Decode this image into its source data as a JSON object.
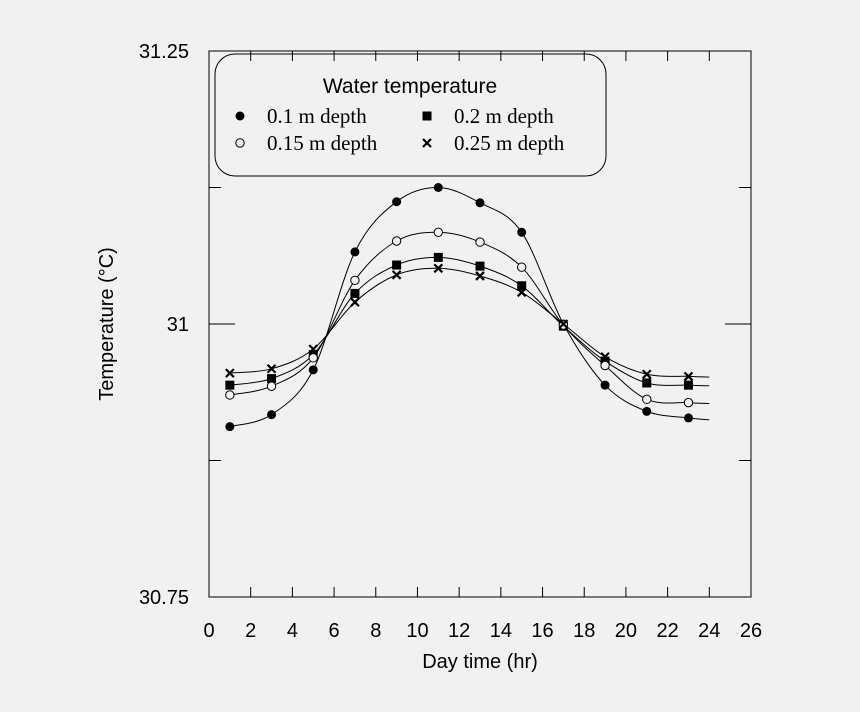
{
  "chart_data": {
    "type": "line",
    "xlabel": "Day time (hr)",
    "ylabel": "Temperature (°C)",
    "xlim": [
      0,
      26
    ],
    "ylim": [
      30.75,
      31.25
    ],
    "xticks": [
      "0",
      "2",
      "4",
      "6",
      "8",
      "10",
      "12",
      "14",
      "16",
      "18",
      "20",
      "22",
      "24",
      "26"
    ],
    "yticks": [
      "30.75",
      "31",
      "31.25"
    ],
    "legend": {
      "title": "Water temperature",
      "placement": "top-left"
    },
    "x": [
      1,
      3,
      5,
      7,
      9,
      11,
      13,
      15,
      17,
      19,
      21,
      23
    ],
    "series": [
      {
        "name": "0.1 m depth",
        "marker": "filled-circle",
        "values": [
          30.906,
          30.917,
          30.958,
          31.066,
          31.112,
          31.125,
          31.111,
          31.084,
          31.0,
          30.944,
          30.92,
          30.914
        ]
      },
      {
        "name": "0.2 m depth",
        "marker": "filled-square",
        "values": [
          30.944,
          30.95,
          30.972,
          31.028,
          31.054,
          31.061,
          31.053,
          31.035,
          30.998,
          30.966,
          30.946,
          30.944
        ]
      },
      {
        "name": "0.15 m depth",
        "marker": "open-circle",
        "values": [
          30.935,
          30.943,
          30.969,
          31.04,
          31.076,
          31.084,
          31.075,
          31.052,
          30.999,
          30.962,
          30.931,
          30.928
        ]
      },
      {
        "name": "0.25 m depth",
        "marker": "cross",
        "values": [
          30.955,
          30.959,
          30.977,
          31.02,
          31.045,
          31.051,
          31.044,
          31.029,
          31.0,
          30.97,
          30.954,
          30.952
        ]
      }
    ]
  }
}
